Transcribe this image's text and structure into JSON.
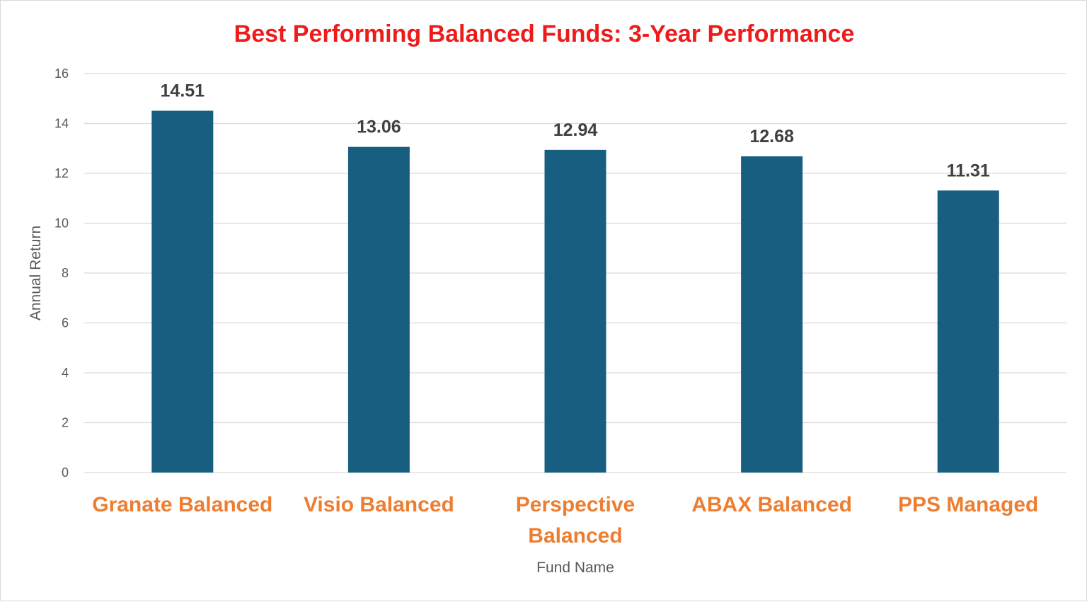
{
  "chart_data": {
    "type": "bar",
    "title": "Best Performing Balanced Funds: 3-Year Performance",
    "xlabel": "Fund Name",
    "ylabel": "Annual Return",
    "categories": [
      "Granate Balanced",
      "Visio Balanced",
      "Perspective Balanced",
      "ABAX Balanced",
      "PPS Managed"
    ],
    "values": [
      14.51,
      13.06,
      12.94,
      12.68,
      11.31
    ],
    "data_labels": [
      "14.51",
      "13.06",
      "12.94",
      "12.68",
      "11.31"
    ],
    "ylim": [
      0,
      16
    ],
    "yticks": [
      0,
      2,
      4,
      6,
      8,
      10,
      12,
      14,
      16
    ],
    "grid": true,
    "legend": "none",
    "colors": {
      "bar": "#175E80",
      "title": "#EE1B1B",
      "category_labels": "#ED7D31",
      "gridline": "#d9d9d9"
    }
  }
}
